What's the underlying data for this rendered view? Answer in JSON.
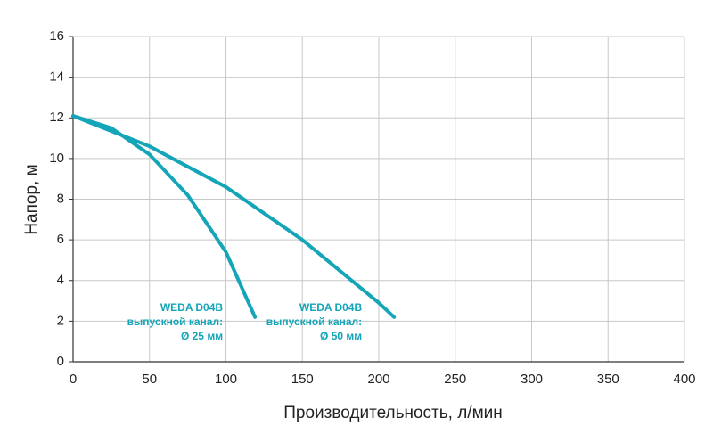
{
  "chart_data": {
    "type": "line",
    "x_label": "Производительность, л/мин",
    "y_label": "Напор, м",
    "xlim": [
      0,
      400
    ],
    "xticks": [
      0,
      50,
      100,
      150,
      200,
      250,
      300,
      350,
      400
    ],
    "ylim": [
      0,
      16
    ],
    "yticks": [
      0,
      2,
      4,
      6,
      8,
      10,
      12,
      14,
      16
    ],
    "grid": true,
    "series": [
      {
        "name": "WEDA D04B выпускной канал: Ø 25 мм",
        "color": "#15a5b9",
        "x": [
          0,
          25,
          50,
          75,
          100,
          119
        ],
        "values": [
          12.1,
          11.5,
          10.2,
          8.2,
          5.4,
          2.2
        ],
        "annotation": [
          "WEDA D04B",
          "выпускной канал:",
          "Ø 25 мм"
        ]
      },
      {
        "name": "WEDA D04B выпускной канал: Ø 50 мм",
        "color": "#15a5b9",
        "x": [
          0,
          50,
          100,
          150,
          200,
          210
        ],
        "values": [
          12.1,
          10.6,
          8.6,
          6.0,
          2.9,
          2.2
        ],
        "annotation": [
          "WEDA D04B",
          "выпускной канал:",
          "Ø 50 мм"
        ]
      }
    ]
  }
}
